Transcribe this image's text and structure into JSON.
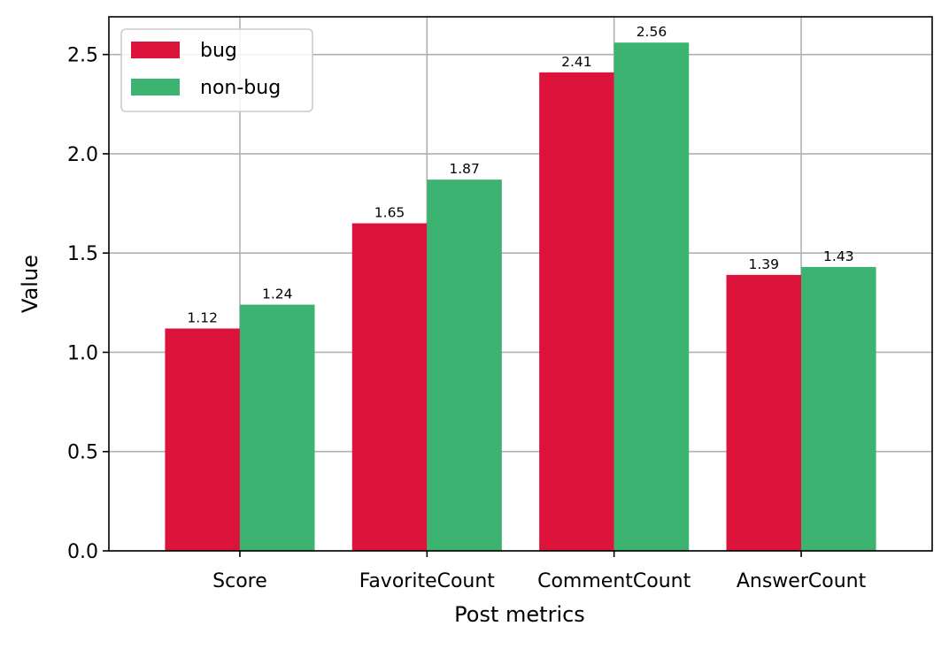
{
  "chart_data": {
    "type": "bar",
    "title": "",
    "xlabel": "Post metrics",
    "ylabel": "Value",
    "categories": [
      "Score",
      "FavoriteCount",
      "CommentCount",
      "AnswerCount"
    ],
    "series": [
      {
        "name": "bug",
        "color": "#dc143c",
        "values": [
          1.12,
          1.65,
          2.41,
          1.39
        ]
      },
      {
        "name": "non-bug",
        "color": "#3cb371",
        "values": [
          1.24,
          1.87,
          2.56,
          1.43
        ]
      }
    ],
    "ylim": [
      0,
      2.69
    ],
    "yticks": [
      "0.0",
      "0.5",
      "1.0",
      "1.5",
      "2.0",
      "2.5"
    ],
    "grid": true,
    "legend_position": "top-left",
    "data_labels": true
  }
}
